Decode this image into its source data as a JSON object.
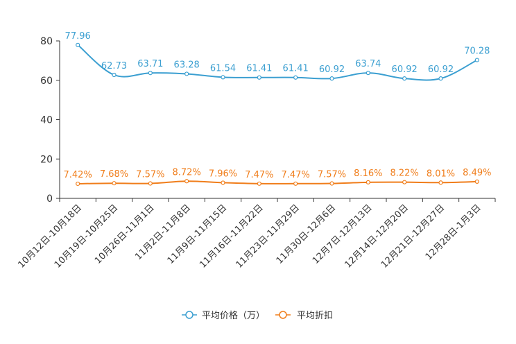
{
  "chart_data": {
    "type": "line",
    "categories": [
      "10月12日-10月18日",
      "10月19日-10月25日",
      "10月26日-11月1日",
      "11月2日-11月8日",
      "11月9日-11月15日",
      "11月16日-11月22日",
      "11月23日-11月29日",
      "11月30日-12月6日",
      "12月7日-12月13日",
      "12月14日-12月20日",
      "12月21日-12月27日",
      "12月28日-1月3日"
    ],
    "ylim": [
      0,
      80
    ],
    "yticks": [
      0,
      20,
      40,
      60,
      80
    ],
    "legend_position": "bottom-center",
    "series": [
      {
        "name": "平均价格（万）",
        "color": "#3b9fd1",
        "values": [
          77.96,
          62.73,
          63.71,
          63.28,
          61.54,
          61.41,
          61.41,
          60.92,
          63.74,
          60.92,
          60.92,
          70.28
        ],
        "labels": [
          "77.96",
          "62.73",
          "63.71",
          "63.28",
          "61.54",
          "61.41",
          "61.41",
          "60.92",
          "63.74",
          "60.92",
          "60.92",
          "70.28"
        ]
      },
      {
        "name": "平均折扣",
        "color": "#f07d1a",
        "values": [
          7.42,
          7.68,
          7.57,
          8.72,
          7.96,
          7.47,
          7.47,
          7.57,
          8.16,
          8.22,
          8.01,
          8.49
        ],
        "labels": [
          "7.42%",
          "7.68%",
          "7.57%",
          "8.72%",
          "7.96%",
          "7.47%",
          "7.47%",
          "7.57%",
          "8.16%",
          "8.22%",
          "8.01%",
          "8.49%"
        ]
      }
    ]
  }
}
